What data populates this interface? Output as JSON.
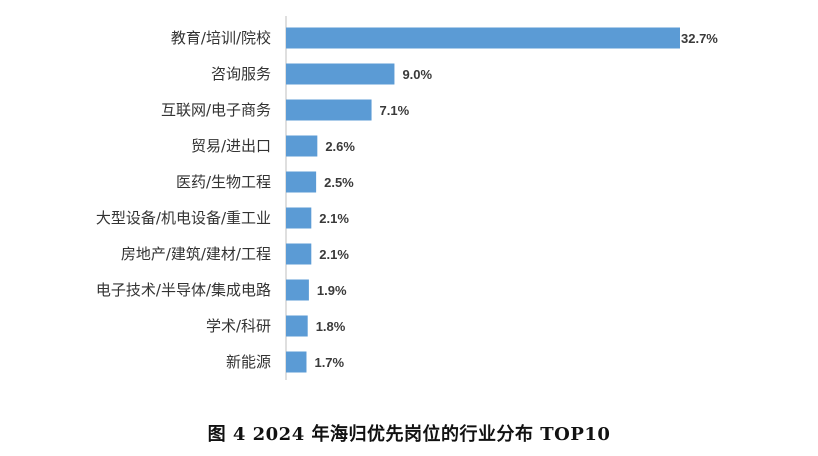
{
  "chart_data": {
    "type": "bar",
    "orientation": "horizontal",
    "categories": [
      "教育/培训/院校",
      "咨询服务",
      "互联网/电子商务",
      "贸易/进出口",
      "医药/生物工程",
      "大型设备/机电设备/重工业",
      "房地产/建筑/建材/工程",
      "电子技术/半导体/集成电路",
      "学术/科研",
      "新能源"
    ],
    "values": [
      32.7,
      9.0,
      7.1,
      2.6,
      2.5,
      2.1,
      2.1,
      1.9,
      1.8,
      1.7
    ],
    "value_labels": [
      "32.7%",
      "9.0%",
      "7.1%",
      "2.6%",
      "2.5%",
      "2.1%",
      "2.1%",
      "1.9%",
      "1.8%",
      "1.7%"
    ],
    "xlim": [
      0,
      32.7
    ],
    "grid": false,
    "legend": "none",
    "colors": {
      "bar": "#5b9bd5",
      "axis": "#bfbfbf"
    }
  },
  "caption": "图 4   2024 年海归优先岗位的行业分布 TOP10"
}
